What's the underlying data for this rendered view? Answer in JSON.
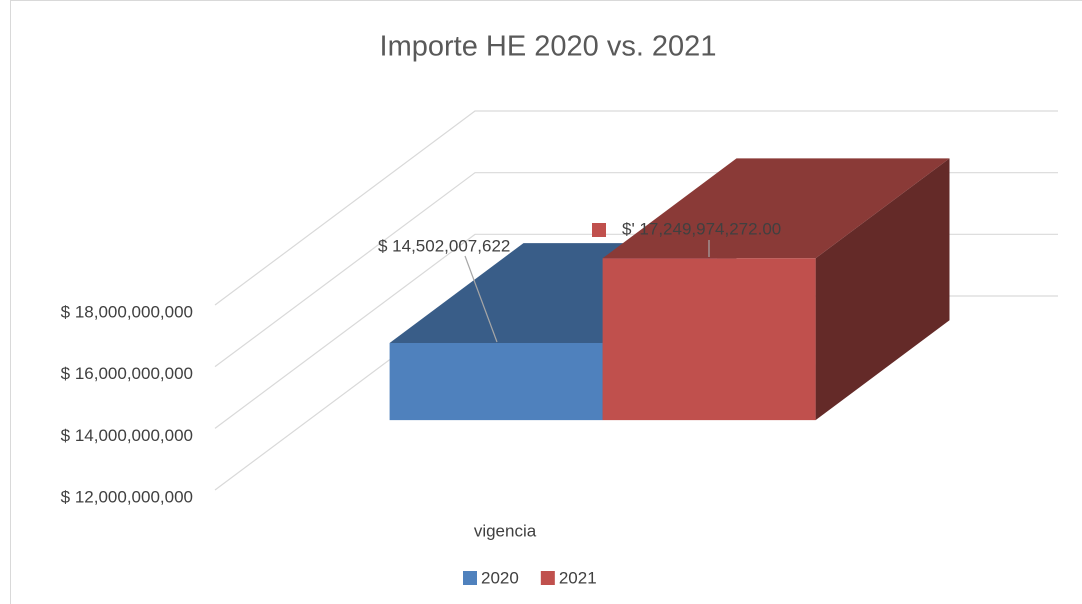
{
  "chart_data": {
    "type": "bar3d",
    "title": "Importe HE 2020 vs. 2021",
    "categories": [
      "vigencia"
    ],
    "series": [
      {
        "name": "2020",
        "color": "#4f81bd",
        "values": [
          14502007622
        ],
        "value_labels": [
          "$ 14,502,007,622"
        ]
      },
      {
        "name": "2021",
        "color": "#c0504d",
        "values": [
          17249974272
        ],
        "value_labels": [
          "$' 17,249,974,272.00"
        ]
      }
    ],
    "ylim": [
      12000000000,
      18000000000
    ],
    "yticks": [
      {
        "value": 12000000000,
        "label": "$ 12,000,000,000"
      },
      {
        "value": 14000000000,
        "label": "$ 14,000,000,000"
      },
      {
        "value": 16000000000,
        "label": "$ 16,000,000,000"
      },
      {
        "value": 18000000000,
        "label": "$ 18,000,000,000"
      }
    ],
    "grid": true,
    "legend": "bottom"
  }
}
